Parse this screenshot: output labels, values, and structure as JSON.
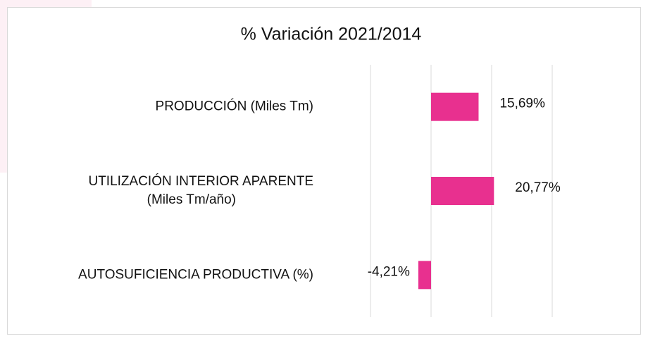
{
  "chart_data": {
    "type": "bar",
    "orientation": "horizontal",
    "title": "% Variación  2021/2014",
    "categories": [
      "PRODUCCIÓN (Miles Tm)",
      "UTILIZACIÓN INTERIOR APARENTE\n(Miles Tm/año)",
      "AUTOSUFICIENCIA PRODUCTIVA (%)"
    ],
    "values": [
      15.69,
      20.77,
      -4.21
    ],
    "value_labels": [
      "15,69%",
      "20,77%",
      "-4,21%"
    ],
    "color": "#e8308f",
    "xlim": [
      -20,
      40
    ],
    "xticks": [
      -20,
      0,
      20,
      40
    ],
    "grid": true
  }
}
